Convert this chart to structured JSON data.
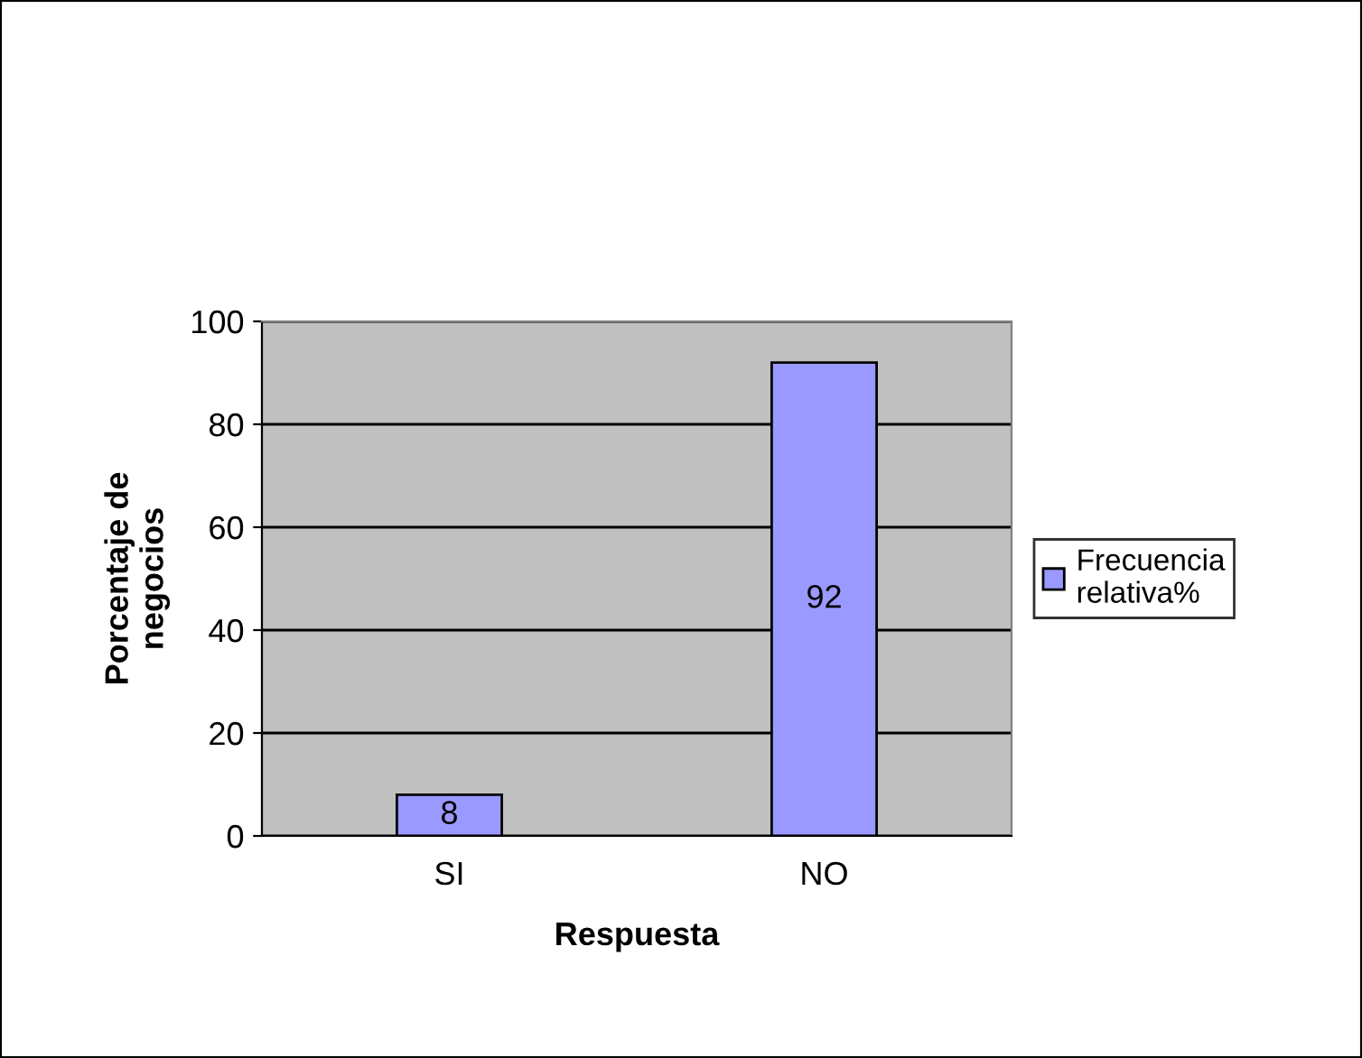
{
  "chart_data": {
    "type": "bar",
    "xlabel": "Respuesta",
    "ylabel": "Porcentaje de\nnegocios",
    "categories": [
      "SI",
      "NO"
    ],
    "series": [
      {
        "name": "Frecuencia\nrelativa%",
        "color": "#9999ff",
        "values": [
          8,
          92
        ]
      }
    ],
    "ylim": [
      0,
      100
    ],
    "yticks": [
      0,
      20,
      40,
      60,
      80,
      100
    ],
    "grid": "y",
    "legend": "right",
    "data_labels": true
  }
}
